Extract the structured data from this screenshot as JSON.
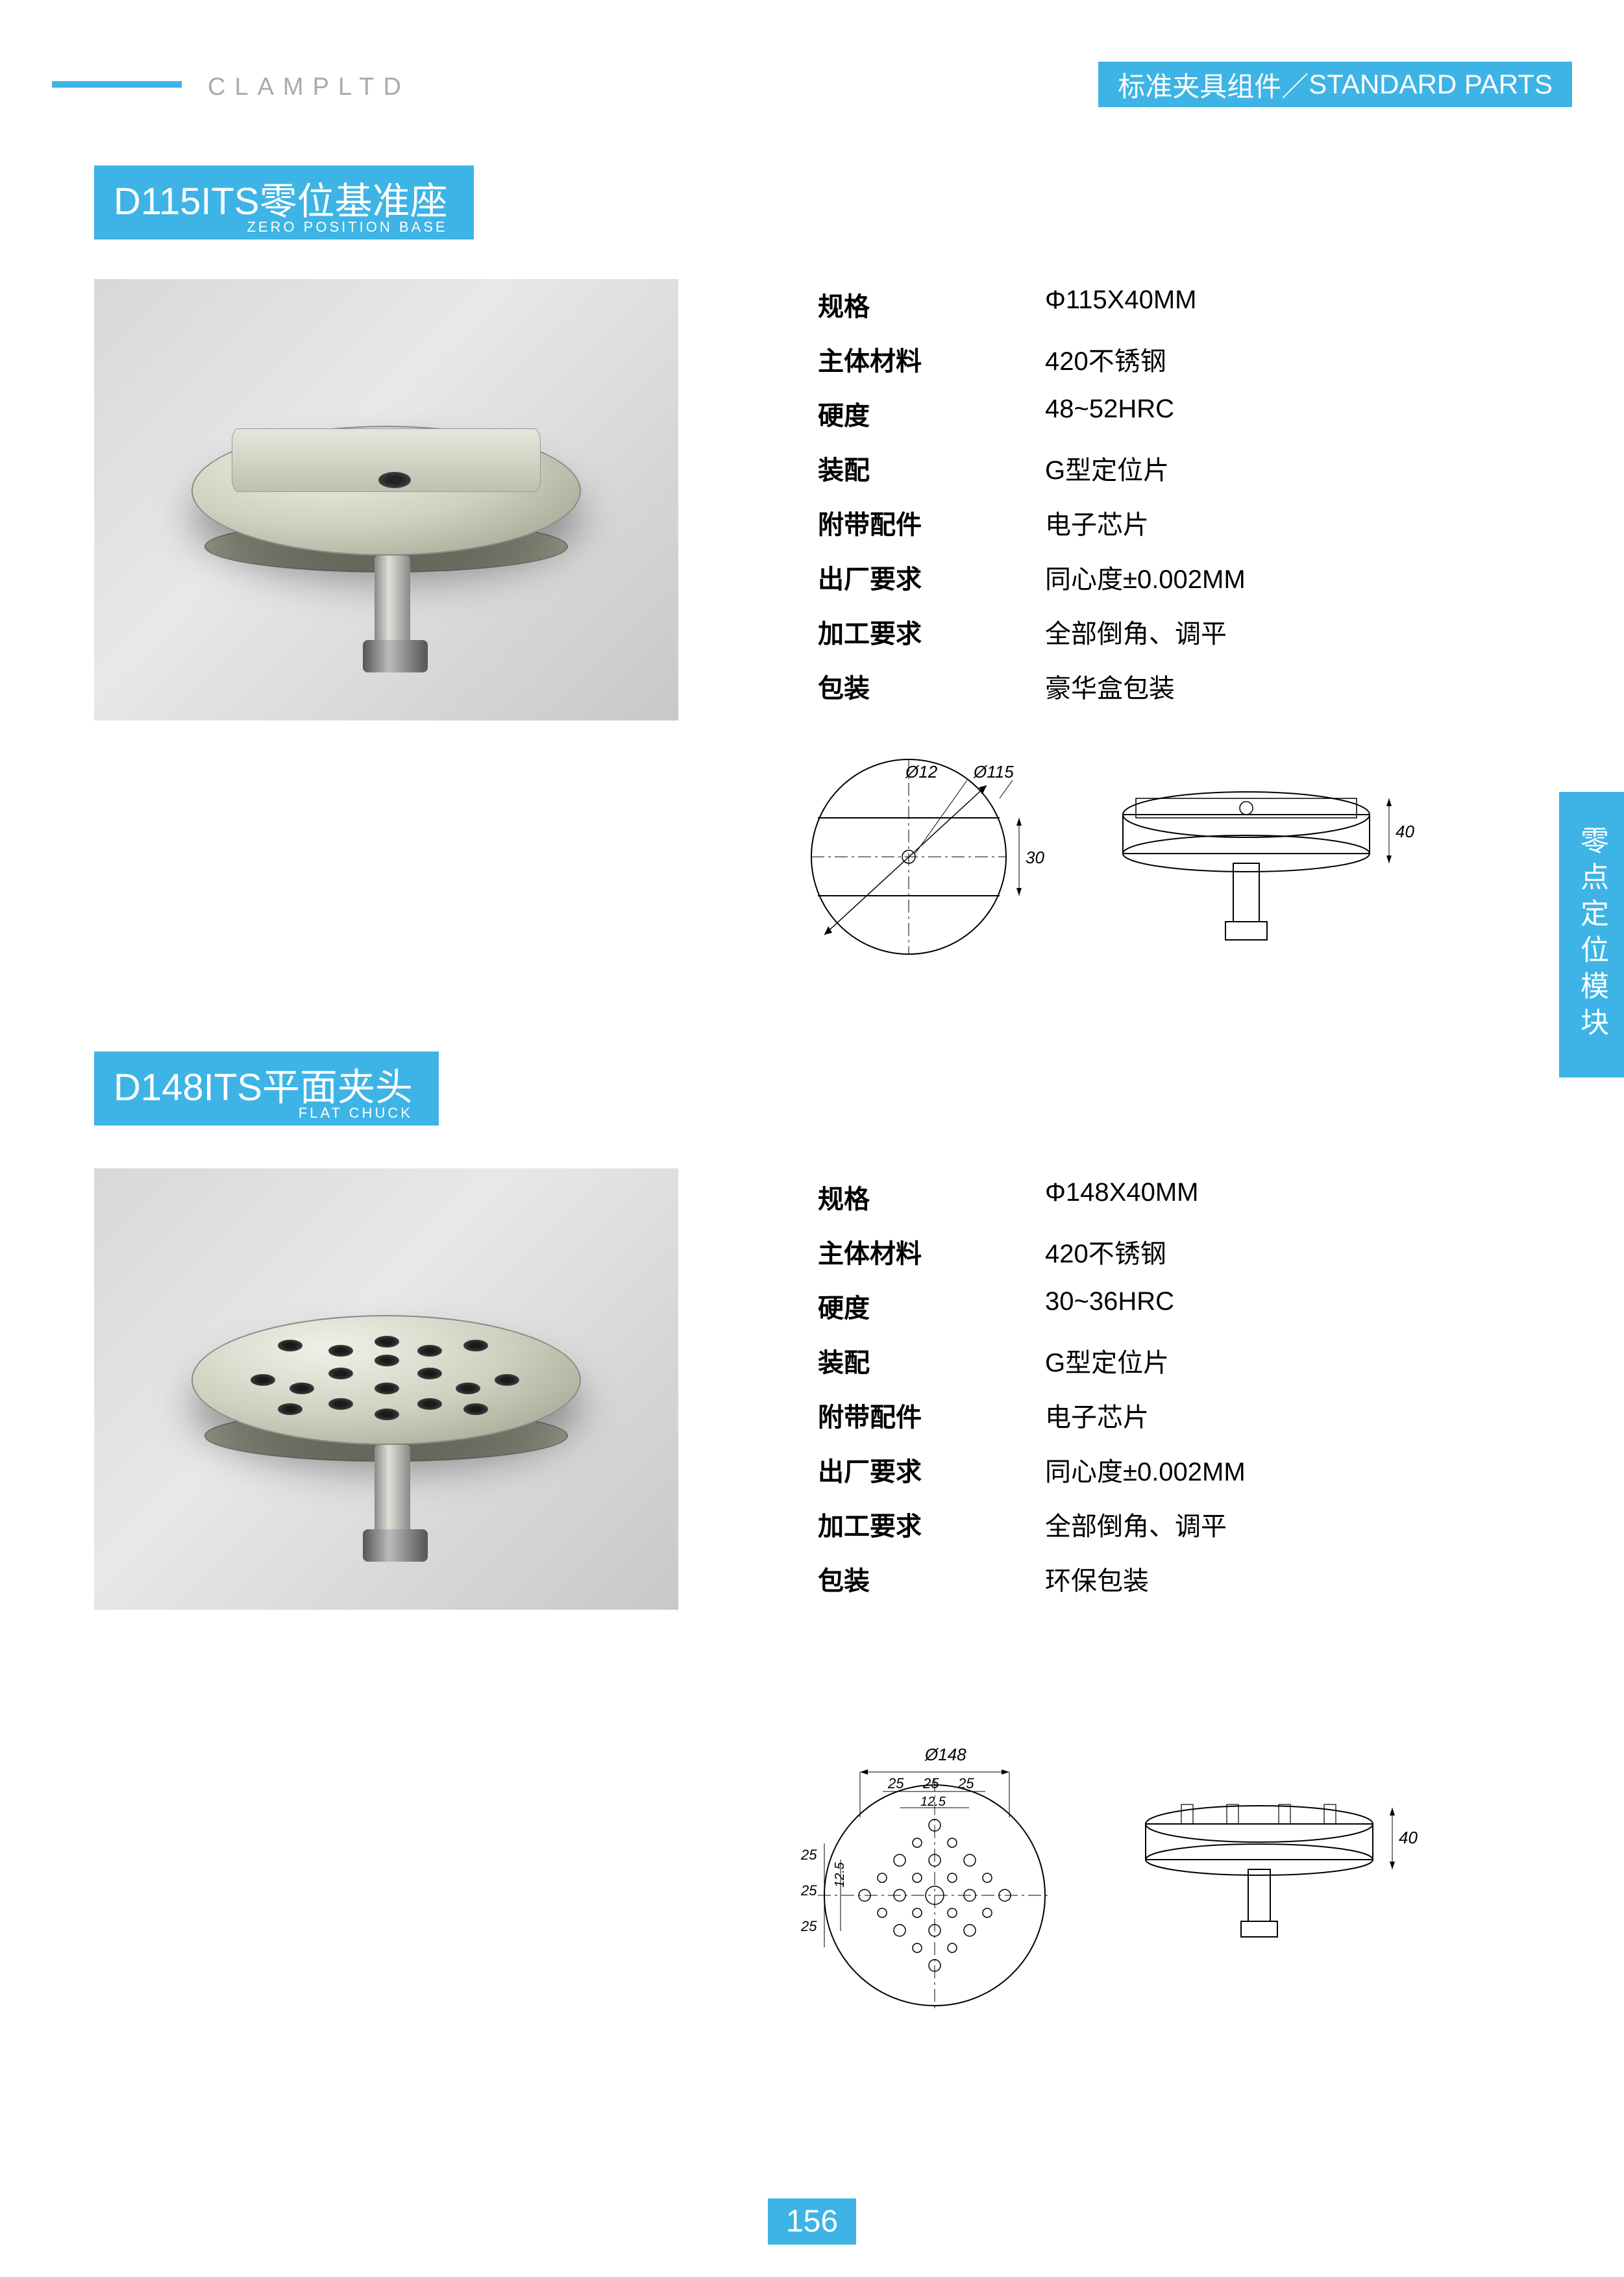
{
  "header": {
    "company": "CLAMPLTD",
    "category_cn": "标准夹具组件",
    "category_en": "STANDARD PARTS"
  },
  "colors": {
    "accent": "#3db4e5",
    "text": "#000000",
    "gray": "#aaaaaa",
    "bg": "#ffffff",
    "img_bg": "#d8d8d8"
  },
  "side_tab": "零点定位模块",
  "page_number": "156",
  "product1": {
    "title_main": "D115ITS零位基准座",
    "title_sub": "ZERO POSITION BASE",
    "specs": [
      {
        "label": "规格",
        "value": "Φ115X40MM"
      },
      {
        "label": "主体材料",
        "value": "420不锈钢"
      },
      {
        "label": "硬度",
        "value": "48~52HRC"
      },
      {
        "label": "装配",
        "value": "G型定位片"
      },
      {
        "label": "附带配件",
        "value": "电子芯片"
      },
      {
        "label": "出厂要求",
        "value": "同心度±0.002MM"
      },
      {
        "label": "加工要求",
        "value": "全部倒角、调平"
      },
      {
        "label": "包装",
        "value": "豪华盒包装"
      }
    ],
    "drawing": {
      "diameter": 115,
      "bore": 12,
      "slot": 30,
      "height": 40
    }
  },
  "product2": {
    "title_main": "D148ITS平面夹头",
    "title_sub": "FLAT CHUCK",
    "specs": [
      {
        "label": "规格",
        "value": "Φ148X40MM"
      },
      {
        "label": "主体材料",
        "value": "420不锈钢"
      },
      {
        "label": "硬度",
        "value": "30~36HRC"
      },
      {
        "label": "装配",
        "value": "G型定位片"
      },
      {
        "label": "附带配件",
        "value": "电子芯片"
      },
      {
        "label": "出厂要求",
        "value": "同心度±0.002MM"
      },
      {
        "label": "加工要求",
        "value": "全部倒角、调平"
      },
      {
        "label": "包装",
        "value": "环保包装"
      }
    ],
    "drawing": {
      "diameter": 148,
      "hole_pitch": [
        25,
        25,
        25
      ],
      "inner_pitch": 12.5,
      "height": 40
    }
  }
}
